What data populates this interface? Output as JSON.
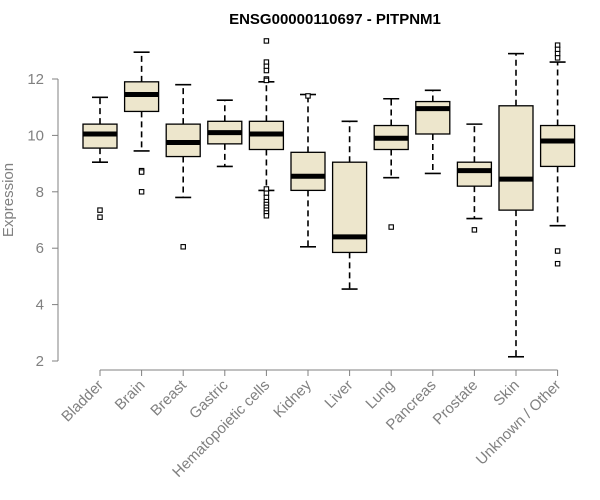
{
  "chart_data": {
    "type": "boxplot",
    "title": "ENSG00000110697 - PITPNM1",
    "xlabel": "",
    "ylabel": "Expression",
    "ylim": [
      2,
      13.4
    ],
    "yticks": [
      2,
      4,
      6,
      8,
      10,
      12
    ],
    "box_color": "#ede6cc",
    "axis_color": "#808080",
    "categories": [
      "Bladder",
      "Brain",
      "Breast",
      "Gastric",
      "Hematopoietic cells",
      "Kidney",
      "Liver",
      "Lung",
      "Pancreas",
      "Prostate",
      "Skin",
      "Unknown / Other"
    ],
    "boxes": [
      {
        "whisker_low": 9.05,
        "q1": 9.55,
        "median": 10.05,
        "q3": 10.4,
        "whisker_high": 11.35,
        "outliers": [
          7.35,
          7.1
        ]
      },
      {
        "whisker_low": 9.45,
        "q1": 10.85,
        "median": 11.45,
        "q3": 11.9,
        "whisker_high": 12.95,
        "outliers": [
          8.75,
          8.7,
          8.0
        ]
      },
      {
        "whisker_low": 7.8,
        "q1": 9.25,
        "median": 9.75,
        "q3": 10.4,
        "whisker_high": 11.8,
        "outliers": [
          6.05
        ]
      },
      {
        "whisker_low": 8.9,
        "q1": 9.7,
        "median": 10.1,
        "q3": 10.5,
        "whisker_high": 11.25,
        "outliers": []
      },
      {
        "whisker_low": 8.05,
        "q1": 9.5,
        "median": 10.05,
        "q3": 10.5,
        "whisker_high": 11.9,
        "outliers": [
          13.35,
          12.6,
          12.45,
          12.3,
          12.0,
          11.95,
          8.1,
          7.95,
          7.8,
          7.65,
          7.55,
          7.45,
          7.35,
          7.25,
          7.15
        ]
      },
      {
        "whisker_low": 6.05,
        "q1": 8.05,
        "median": 8.55,
        "q3": 9.4,
        "whisker_high": 11.45,
        "outliers": [
          11.4
        ]
      },
      {
        "whisker_low": 4.55,
        "q1": 5.85,
        "median": 6.4,
        "q3": 9.05,
        "whisker_high": 10.5,
        "outliers": []
      },
      {
        "whisker_low": 8.5,
        "q1": 9.5,
        "median": 9.9,
        "q3": 10.35,
        "whisker_high": 11.3,
        "outliers": [
          6.75
        ]
      },
      {
        "whisker_low": 8.65,
        "q1": 10.05,
        "median": 10.95,
        "q3": 11.2,
        "whisker_high": 11.6,
        "outliers": []
      },
      {
        "whisker_low": 7.05,
        "q1": 8.2,
        "median": 8.75,
        "q3": 9.05,
        "whisker_high": 10.4,
        "outliers": [
          6.65
        ]
      },
      {
        "whisker_low": 2.15,
        "q1": 7.35,
        "median": 8.45,
        "q3": 11.05,
        "whisker_high": 12.9,
        "outliers": []
      },
      {
        "whisker_low": 6.8,
        "q1": 8.9,
        "median": 9.8,
        "q3": 10.35,
        "whisker_high": 12.6,
        "outliers": [
          13.2,
          13.05,
          12.9,
          12.75,
          5.9,
          5.45
        ]
      }
    ]
  }
}
